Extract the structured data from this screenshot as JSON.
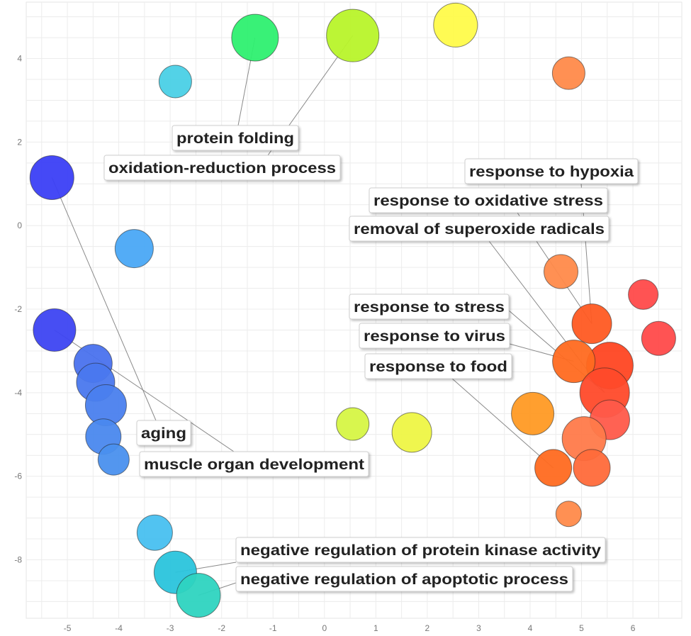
{
  "chart_data": {
    "type": "scatter",
    "xlim": [
      -5.8,
      6.95
    ],
    "ylim": [
      -9.4,
      5.35
    ],
    "x_ticks": [
      -5,
      -4,
      -3,
      -2,
      -1,
      0,
      1,
      2,
      3,
      4,
      5,
      6
    ],
    "y_ticks": [
      4,
      2,
      0,
      -2,
      -4,
      -6,
      -8
    ],
    "grid": true,
    "points": [
      {
        "x": -5.3,
        "y": 1.15,
        "size": 31,
        "color": "#3b3ff5"
      },
      {
        "x": -5.25,
        "y": -2.5,
        "size": 30,
        "color": "#3d45f2"
      },
      {
        "x": -4.5,
        "y": -3.3,
        "size": 27,
        "color": "#4a72ee"
      },
      {
        "x": -4.45,
        "y": -3.75,
        "size": 27,
        "color": "#4a78ee"
      },
      {
        "x": -4.25,
        "y": -4.3,
        "size": 29,
        "color": "#4a80ee"
      },
      {
        "x": -4.3,
        "y": -5.05,
        "size": 25,
        "color": "#4a88ee"
      },
      {
        "x": -4.1,
        "y": -5.6,
        "size": 22,
        "color": "#4a90ee"
      },
      {
        "x": -3.7,
        "y": -0.55,
        "size": 27,
        "color": "#4aa8f5"
      },
      {
        "x": -2.9,
        "y": 3.45,
        "size": 23,
        "color": "#4ad0e6"
      },
      {
        "x": -3.3,
        "y": -7.35,
        "size": 25,
        "color": "#48c0f0"
      },
      {
        "x": -2.9,
        "y": -8.3,
        "size": 30,
        "color": "#2ac4dc"
      },
      {
        "x": -2.45,
        "y": -8.85,
        "size": 31,
        "color": "#2ed4c0"
      },
      {
        "x": -1.35,
        "y": 4.5,
        "size": 33,
        "color": "#2ef070"
      },
      {
        "x": 0.55,
        "y": 4.55,
        "size": 37,
        "color": "#b8f42a"
      },
      {
        "x": 0.55,
        "y": -4.75,
        "size": 23,
        "color": "#d6f545"
      },
      {
        "x": 1.7,
        "y": -4.95,
        "size": 28,
        "color": "#eef545"
      },
      {
        "x": 2.55,
        "y": 4.8,
        "size": 31,
        "color": "#fffb4a"
      },
      {
        "x": 4.75,
        "y": 3.65,
        "size": 23,
        "color": "#ff8a4a"
      },
      {
        "x": 4.6,
        "y": -1.1,
        "size": 24,
        "color": "#ff8a4a"
      },
      {
        "x": 6.2,
        "y": -1.65,
        "size": 21,
        "color": "#ff4a4a"
      },
      {
        "x": 6.5,
        "y": -2.7,
        "size": 24,
        "color": "#ff4a4a"
      },
      {
        "x": 5.2,
        "y": -2.35,
        "size": 28,
        "color": "#ff5a22"
      },
      {
        "x": 5.55,
        "y": -3.35,
        "size": 33,
        "color": "#ff4622"
      },
      {
        "x": 4.85,
        "y": -3.25,
        "size": 30,
        "color": "#ff6a20"
      },
      {
        "x": 5.45,
        "y": -4.0,
        "size": 35,
        "color": "#ff4a2a"
      },
      {
        "x": 4.05,
        "y": -4.5,
        "size": 30,
        "color": "#ff9a24"
      },
      {
        "x": 5.55,
        "y": -4.65,
        "size": 28,
        "color": "#ff5a4a"
      },
      {
        "x": 5.05,
        "y": -5.1,
        "size": 31,
        "color": "#ff7a4a"
      },
      {
        "x": 5.2,
        "y": -5.8,
        "size": 26,
        "color": "#ff6a3a"
      },
      {
        "x": 4.45,
        "y": -5.8,
        "size": 26,
        "color": "#ff6a20"
      },
      {
        "x": 4.75,
        "y": -6.9,
        "size": 18,
        "color": "#ff8a4a"
      }
    ],
    "annotations": [
      {
        "text": "protein folding",
        "target": 12
      },
      {
        "text": "oxidation-reduction process",
        "target": 13
      },
      {
        "text": "response to hypoxia",
        "target": 21
      },
      {
        "text": "response to oxidative stress",
        "target": 21
      },
      {
        "text": "removal of superoxide radicals",
        "target": 24
      },
      {
        "text": "response to stress",
        "target": 24
      },
      {
        "text": "response to virus",
        "target": 23
      },
      {
        "text": "response to food",
        "target": 29
      },
      {
        "text": "aging",
        "target": 0
      },
      {
        "text": "muscle organ development",
        "target": 1
      },
      {
        "text": "negative regulation of protein kinase activity",
        "target": 10
      },
      {
        "text": "negative regulation of apoptotic process",
        "target": 11
      }
    ]
  }
}
